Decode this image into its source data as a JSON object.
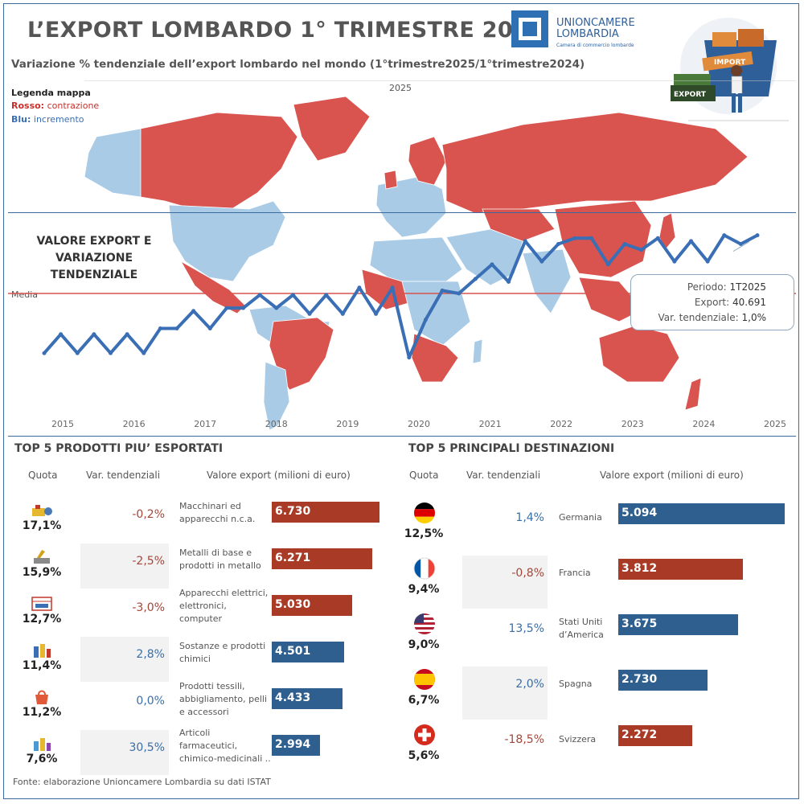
{
  "header": {
    "title": "L’EXPORT LOMBARDO 1° TRIMESTRE 2025",
    "subtitle": "Variazione % tendenziale dell’export lombardo nel mondo (1°trimestre2025/1°trimestre2024)",
    "logo_name_line1": "UNIONCAMERE",
    "logo_name_line2": "LOMBARDIA",
    "logo_sub": "Camera di commercio lombarde",
    "illustration_export": "EXPORT",
    "illustration_import": "IMPORT"
  },
  "legend": {
    "title": "Legenda mappa",
    "red_key": "Rosso:",
    "red_text": "contrazione",
    "blue_key": "Blu:",
    "blue_text": "incremento"
  },
  "map": {
    "year_label": "2025",
    "color_contraction": "#d9534f",
    "color_increase": "#a9cbe6"
  },
  "line_panel": {
    "title_line1": "VALORE EXPORT E",
    "title_line2": "VARIAZIONE",
    "title_line3": "TENDENZIALE",
    "media_label": "Media",
    "tooltip": {
      "period_label": "Periodo:",
      "period_value": "1T2025",
      "export_label": "Export:",
      "export_value": "40.691",
      "var_label": "Var. tendenziale:",
      "var_value": "1,0%"
    }
  },
  "chart_data": [
    {
      "type": "line",
      "title": "VALORE EXPORT E VARIAZIONE TENDENZIALE",
      "x_labels": [
        "2015",
        "2016",
        "2017",
        "2018",
        "2019",
        "2020",
        "2021",
        "2022",
        "2023",
        "2024",
        "2025"
      ],
      "x": [
        "2014Q2",
        "2014Q3",
        "2014Q4",
        "2015Q1",
        "2015Q2",
        "2015Q3",
        "2015Q4",
        "2016Q1",
        "2016Q2",
        "2016Q3",
        "2016Q4",
        "2017Q1",
        "2017Q2",
        "2017Q3",
        "2017Q4",
        "2018Q1",
        "2018Q2",
        "2018Q3",
        "2018Q4",
        "2019Q1",
        "2019Q2",
        "2019Q3",
        "2019Q4",
        "2020Q1",
        "2020Q2",
        "2020Q3",
        "2020Q4",
        "2021Q1",
        "2021Q2",
        "2021Q3",
        "2021Q4",
        "2022Q1",
        "2022Q2",
        "2022Q3",
        "2022Q4",
        "2023Q1",
        "2023Q2",
        "2023Q3",
        "2023Q4",
        "2024Q1",
        "2024Q2",
        "2024Q3",
        "2024Q4",
        "2025Q1"
      ],
      "y_relative": [
        0.17,
        0.3,
        0.17,
        0.3,
        0.17,
        0.3,
        0.17,
        0.34,
        0.34,
        0.46,
        0.34,
        0.48,
        0.48,
        0.57,
        0.48,
        0.57,
        0.44,
        0.57,
        0.44,
        0.62,
        0.44,
        0.62,
        0.14,
        0.4,
        0.6,
        0.58,
        0.68,
        0.78,
        0.66,
        0.94,
        0.8,
        0.92,
        0.96,
        0.96,
        0.78,
        0.92,
        0.88,
        0.96,
        0.8,
        0.94,
        0.8,
        0.98,
        0.92,
        0.98
      ],
      "media_relative": 0.58,
      "highlight": {
        "period": "1T2025",
        "export": 40691,
        "var_pct": 1.0
      }
    },
    {
      "type": "bar",
      "title": "TOP 5 PRODOTTI PIU’ ESPORTATI",
      "categories": [
        "Macchinari ed apparecchi n.c.a.",
        "Metalli di base e prodotti in metallo",
        "Apparecchi elettrici, elettronici, computer",
        "Sostanze e prodotti chimici",
        "Prodotti tessili, abbigliamento, pelli e accessori",
        "Articoli farmaceutici, chimico-medicinali .."
      ],
      "values": [
        6730,
        6271,
        5030,
        4501,
        4433,
        2994
      ],
      "quota": [
        "17,1%",
        "15,9%",
        "12,7%",
        "11,4%",
        "11,2%",
        "7,6%"
      ],
      "var": [
        "-0,2%",
        "-2,5%",
        "-3,0%",
        "2,8%",
        "0,0%",
        "30,5%"
      ],
      "xlabel": "Valore export (milioni di euro)"
    },
    {
      "type": "bar",
      "title": "TOP 5 PRINCIPALI DESTINAZIONI",
      "categories": [
        "Germania",
        "Francia",
        "Stati Uniti d’America",
        "Spagna",
        "Svizzera"
      ],
      "values": [
        5094,
        3812,
        3675,
        2730,
        2272
      ],
      "quota": [
        "12,5%",
        "9,4%",
        "9,0%",
        "6,7%",
        "5,6%"
      ],
      "var": [
        "1,4%",
        "-0,8%",
        "13,5%",
        "2,0%",
        "-18,5%"
      ],
      "xlabel": "Valore export (milioni di euro)"
    }
  ],
  "tables": {
    "col_quota": "Quota",
    "col_var": "Var. tendenziali",
    "col_value": "Valore export (milioni di euro)",
    "products": {
      "title": "TOP 5 PRODOTTI PIU’ ESPORTATI",
      "rows": [
        {
          "quota": "17,1%",
          "var": "-0,2%",
          "label_l1": "Macchinari ed",
          "label_l2": "apparecchi n.c.a.",
          "label_l3": "",
          "value": "6.730",
          "sign": "neg",
          "icon": "machinery-icon"
        },
        {
          "quota": "15,9%",
          "var": "-2,5%",
          "label_l1": "Metalli di base e",
          "label_l2": "prodotti in metallo",
          "label_l3": "",
          "value": "6.271",
          "sign": "neg",
          "icon": "metal-icon"
        },
        {
          "quota": "12,7%",
          "var": "-3,0%",
          "label_l1": "Apparecchi elettrici,",
          "label_l2": "elettronici,",
          "label_l3": "computer",
          "value": "5.030",
          "sign": "neg",
          "icon": "electronics-icon"
        },
        {
          "quota": "11,4%",
          "var": "2,8%",
          "label_l1": "Sostanze e prodotti",
          "label_l2": "chimici",
          "label_l3": "",
          "value": "4.501",
          "sign": "pos",
          "icon": "chemicals-icon"
        },
        {
          "quota": "11,2%",
          "var": "0,0%",
          "label_l1": "Prodotti tessili,",
          "label_l2": "abbigliamento, pelli",
          "label_l3": "e accessori",
          "value": "4.433",
          "sign": "pos",
          "icon": "textile-icon"
        },
        {
          "quota": "7,6%",
          "var": "30,5%",
          "label_l1": "Articoli",
          "label_l2": "farmaceutici,",
          "label_l3": "chimico-medicinali ..",
          "value": "2.994",
          "sign": "pos",
          "icon": "pharma-icon"
        }
      ]
    },
    "destinations": {
      "title": "TOP 5 PRINCIPALI DESTINAZIONI",
      "rows": [
        {
          "quota": "12,5%",
          "var": "1,4%",
          "label_l1": "Germania",
          "label_l2": "",
          "value": "5.094",
          "sign": "pos",
          "flag": "germany-flag-icon"
        },
        {
          "quota": "9,4%",
          "var": "-0,8%",
          "label_l1": "Francia",
          "label_l2": "",
          "value": "3.812",
          "sign": "neg",
          "flag": "france-flag-icon"
        },
        {
          "quota": "9,0%",
          "var": "13,5%",
          "label_l1": "Stati Uniti",
          "label_l2": "d’America",
          "value": "3.675",
          "sign": "pos",
          "flag": "usa-flag-icon"
        },
        {
          "quota": "6,7%",
          "var": "2,0%",
          "label_l1": "Spagna",
          "label_l2": "",
          "value": "2.730",
          "sign": "pos",
          "flag": "spain-flag-icon"
        },
        {
          "quota": "5,6%",
          "var": "-18,5%",
          "label_l1": "Svizzera",
          "label_l2": "",
          "value": "2.272",
          "sign": "neg",
          "flag": "switzerland-flag-icon"
        }
      ]
    }
  },
  "colors": {
    "negative": "#a83a26",
    "positive": "#2e5f8f",
    "line": "#3a6fb5",
    "media": "#d9534f"
  },
  "footer": {
    "source": "Fonte: elaborazione Unioncamere Lombardia su dati ISTAT"
  }
}
